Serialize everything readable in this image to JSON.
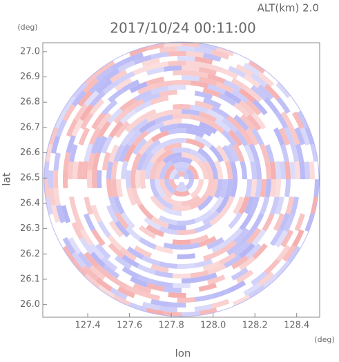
{
  "chart_data": {
    "type": "radar-ppi",
    "title": "2017/10/24 00:11:00",
    "subtitle": "ALT(km) 2.0",
    "x_label": "lon",
    "y_label": "lat",
    "x_unit": "(deg)",
    "y_unit": "(deg)",
    "xlim": [
      127.185,
      128.51
    ],
    "ylim": [
      25.95,
      27.035
    ],
    "xticks": [
      127.4,
      127.6,
      127.8,
      {
        "value": 128,
        "label": "128.0"
      },
      128.2,
      128.4
    ],
    "yticks": [
      {
        "value": 26,
        "label": "26.0"
      },
      26.1,
      26.2,
      26.3,
      26.4,
      26.5,
      26.6,
      26.7,
      26.8,
      26.9,
      {
        "value": 27,
        "label": "27.0"
      }
    ],
    "colors": [
      "#f4a0a0",
      "#a8a8f4"
    ]
  }
}
